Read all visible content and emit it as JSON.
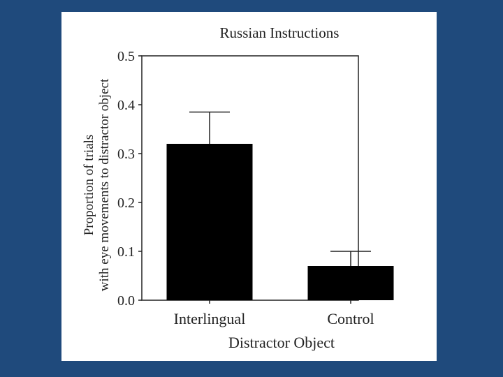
{
  "chart_data": {
    "type": "bar",
    "title": "Russian Instructions",
    "xlabel": "Distractor Object",
    "ylabel_lines": [
      "Proportion of trials",
      "with eye movements to distractor object"
    ],
    "categories": [
      "Interlingual",
      "Control"
    ],
    "values": [
      0.32,
      0.07
    ],
    "errors": [
      0.065,
      0.03
    ],
    "ylim": [
      0,
      0.5
    ],
    "yticks": [
      "0.0",
      "0.1",
      "0.2",
      "0.3",
      "0.4",
      "0.5"
    ],
    "ytick_values": [
      0,
      0.1,
      0.2,
      0.3,
      0.4,
      0.5
    ],
    "bar_color": "#000000",
    "grid": false
  }
}
